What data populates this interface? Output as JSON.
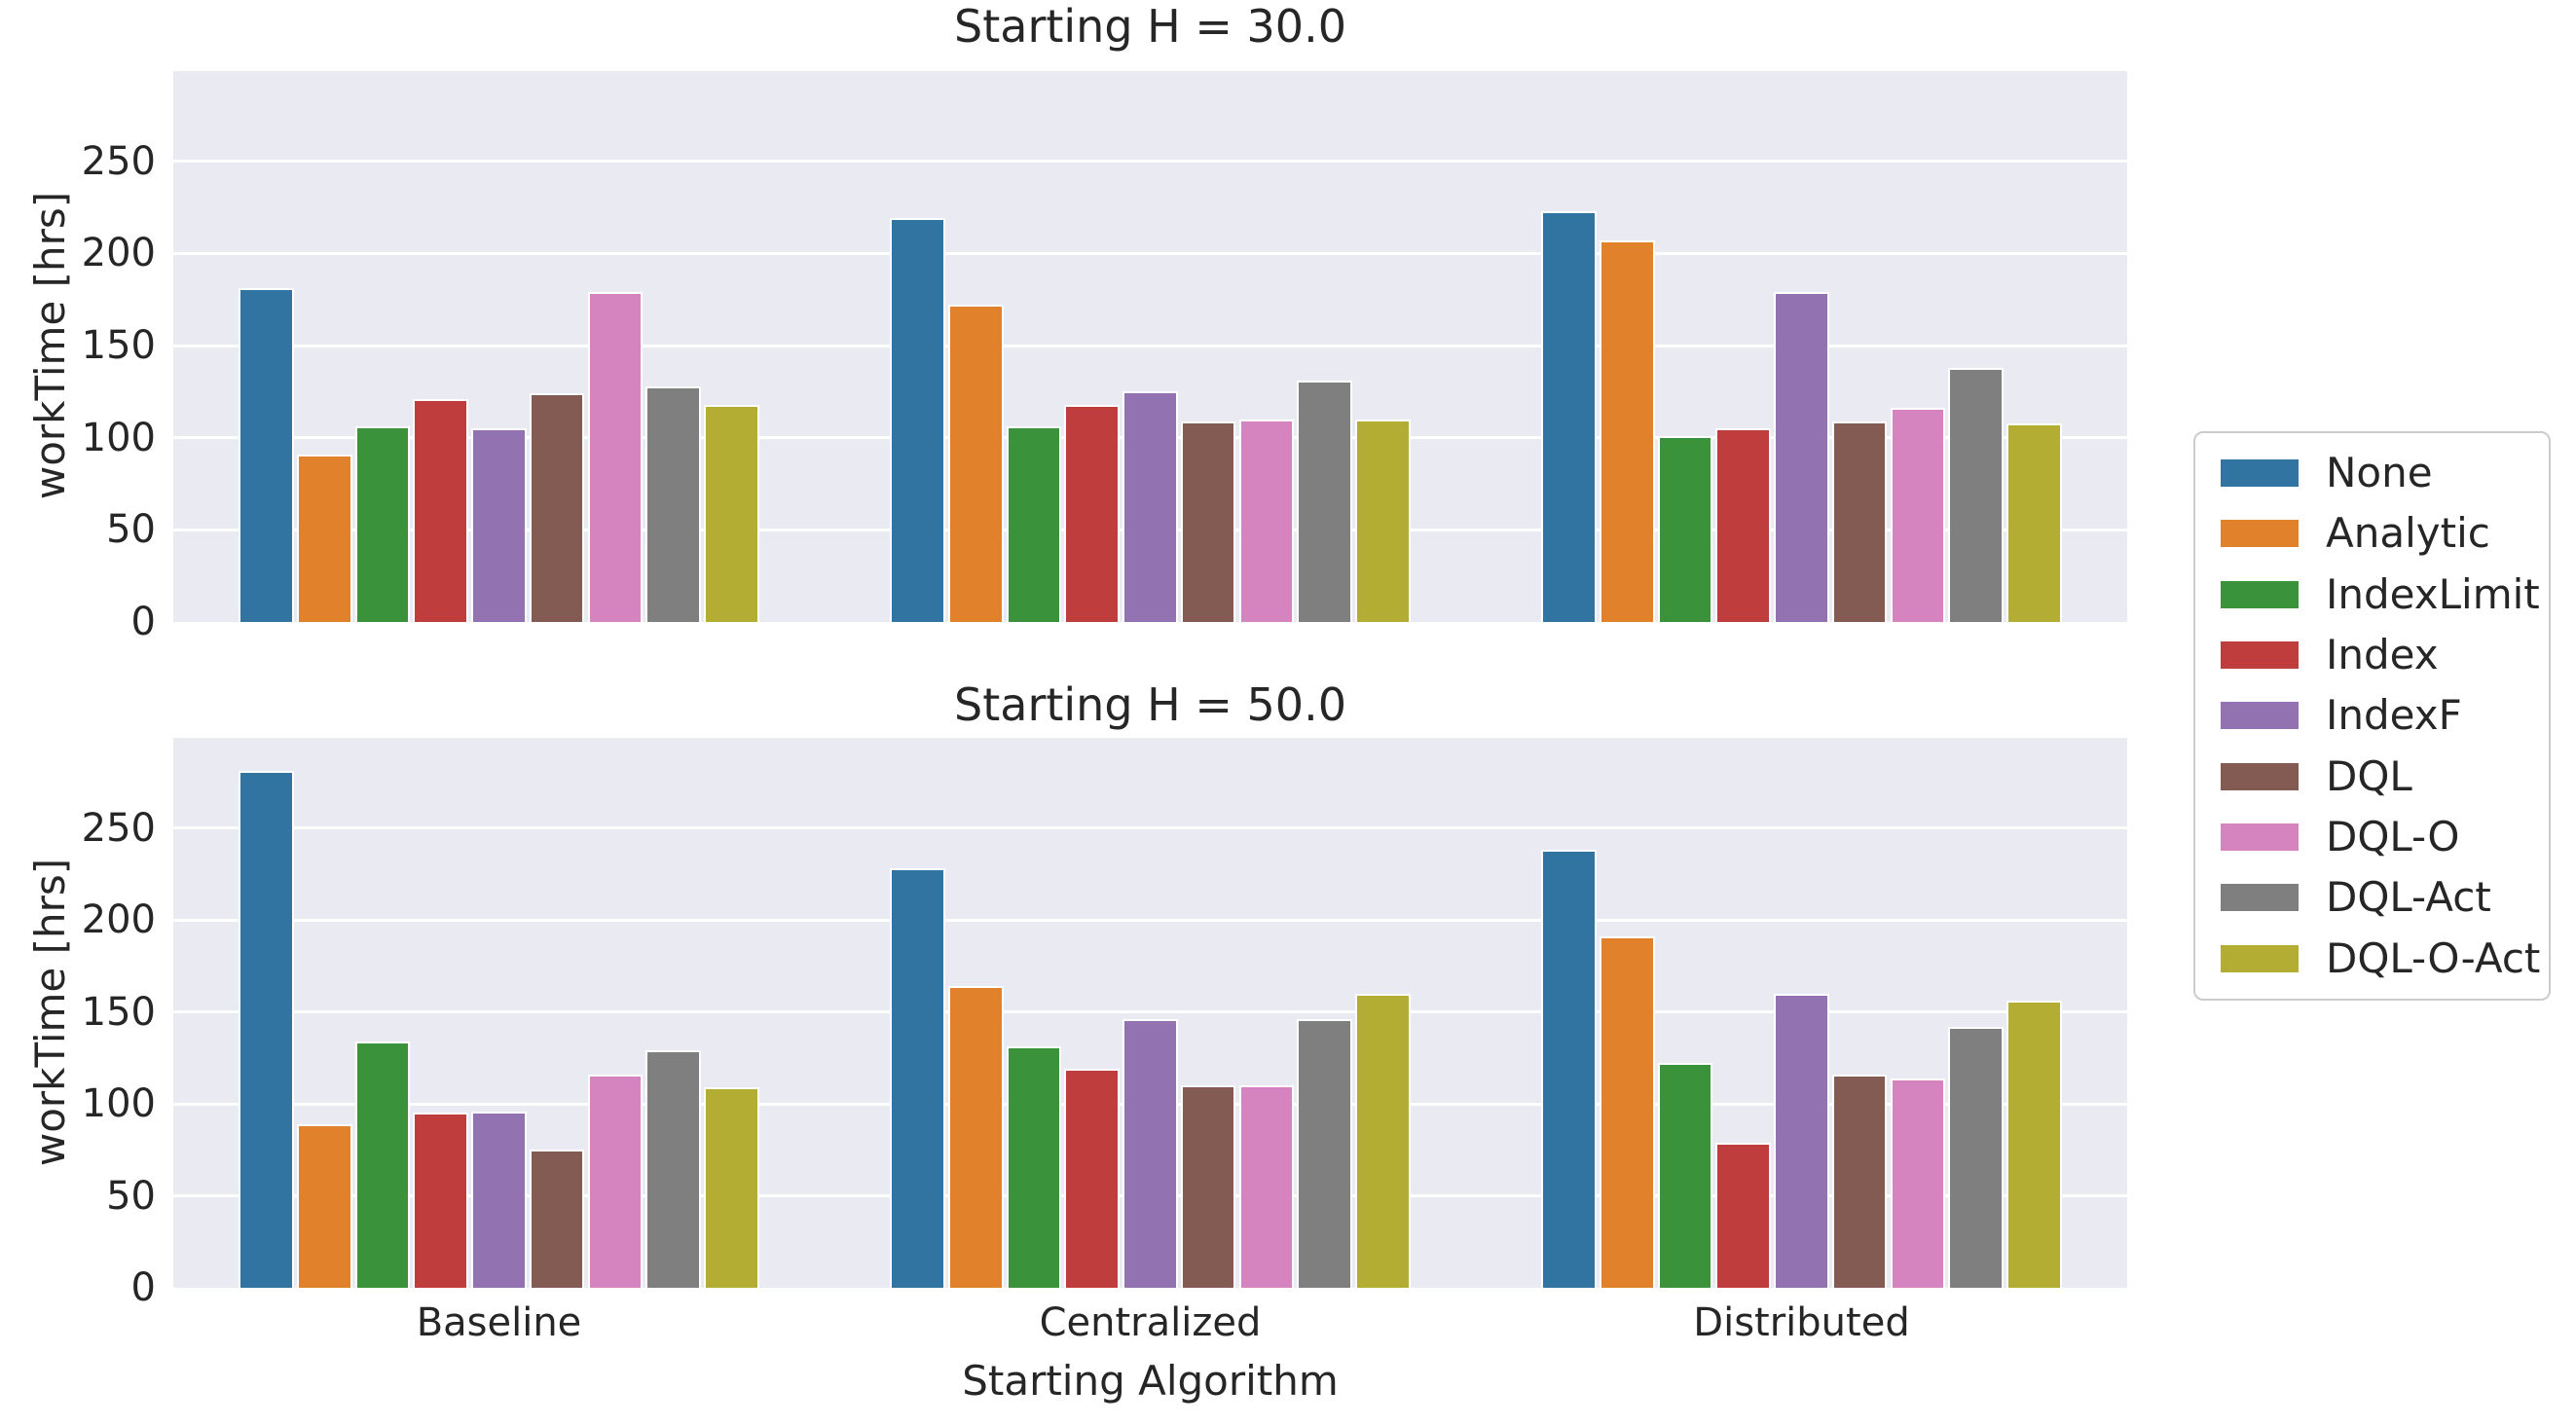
{
  "figure": {
    "background": "#ffffff",
    "axes_background": "#eaeaf2",
    "grid_color": "#ffffff",
    "text_color": "#262626"
  },
  "xlabel": "Starting Algorithm",
  "legend": {
    "position": "center right",
    "entries": [
      {
        "label": "None",
        "color": "#3274a1"
      },
      {
        "label": "Analytic",
        "color": "#e1812c"
      },
      {
        "label": "IndexLimit",
        "color": "#3a923a"
      },
      {
        "label": "Index",
        "color": "#c03d3e"
      },
      {
        "label": "IndexF",
        "color": "#9372b2"
      },
      {
        "label": "DQL",
        "color": "#845b53"
      },
      {
        "label": "DQL-O",
        "color": "#d684c0"
      },
      {
        "label": "DQL-Act",
        "color": "#7f7f7f"
      },
      {
        "label": "DQL-O-Act",
        "color": "#b3ae33"
      }
    ]
  },
  "chart_data": [
    {
      "type": "bar",
      "title": "Starting H = 30.0",
      "ylabel": "workTime [hrs]",
      "xlabel": "Starting Algorithm",
      "categories": [
        "Baseline",
        "Centralized",
        "Distributed"
      ],
      "show_xticklabels": false,
      "yticks": [
        0,
        50,
        100,
        150,
        200,
        250
      ],
      "yticklabels": [
        "0",
        "50",
        "100",
        "150",
        "200",
        "250"
      ],
      "ylim": [
        0,
        300
      ],
      "grid": true,
      "legend_position": "center right",
      "series": [
        {
          "name": "None",
          "color": "#3274a1",
          "values": [
            181,
            219,
            223
          ]
        },
        {
          "name": "Analytic",
          "color": "#e1812c",
          "values": [
            91,
            172,
            207
          ]
        },
        {
          "name": "IndexLimit",
          "color": "#3a923a",
          "values": [
            106,
            106,
            101
          ]
        },
        {
          "name": "Index",
          "color": "#c03d3e",
          "values": [
            121,
            118,
            105
          ]
        },
        {
          "name": "IndexF",
          "color": "#9372b2",
          "values": [
            105,
            125,
            179
          ]
        },
        {
          "name": "DQL",
          "color": "#845b53",
          "values": [
            124,
            109,
            109
          ]
        },
        {
          "name": "DQL-O",
          "color": "#d684c0",
          "values": [
            179,
            110,
            116
          ]
        },
        {
          "name": "DQL-Act",
          "color": "#7f7f7f",
          "values": [
            128,
            131,
            138
          ]
        },
        {
          "name": "DQL-O-Act",
          "color": "#b3ae33",
          "values": [
            118,
            110,
            108
          ]
        }
      ]
    },
    {
      "type": "bar",
      "title": "Starting H = 50.0",
      "ylabel": "workTime [hrs]",
      "xlabel": "Starting Algorithm",
      "categories": [
        "Baseline",
        "Centralized",
        "Distributed"
      ],
      "show_xticklabels": true,
      "yticks": [
        0,
        50,
        100,
        150,
        200,
        250
      ],
      "yticklabels": [
        "0",
        "50",
        "100",
        "150",
        "200",
        "250"
      ],
      "ylim": [
        0,
        300
      ],
      "grid": true,
      "legend_position": "center right",
      "series": [
        {
          "name": "None",
          "color": "#3274a1",
          "values": [
            281,
            228,
            238
          ]
        },
        {
          "name": "Analytic",
          "color": "#e1812c",
          "values": [
            89,
            164,
            191
          ]
        },
        {
          "name": "IndexLimit",
          "color": "#3a923a",
          "values": [
            134,
            131,
            122
          ]
        },
        {
          "name": "Index",
          "color": "#c03d3e",
          "values": [
            95,
            119,
            79
          ]
        },
        {
          "name": "IndexF",
          "color": "#9372b2",
          "values": [
            96,
            146,
            160
          ]
        },
        {
          "name": "DQL",
          "color": "#845b53",
          "values": [
            75,
            110,
            116
          ]
        },
        {
          "name": "DQL-O",
          "color": "#d684c0",
          "values": [
            116,
            110,
            114
          ]
        },
        {
          "name": "DQL-Act",
          "color": "#7f7f7f",
          "values": [
            129,
            146,
            142
          ]
        },
        {
          "name": "DQL-O-Act",
          "color": "#b3ae33",
          "values": [
            109,
            160,
            156
          ]
        }
      ]
    }
  ]
}
